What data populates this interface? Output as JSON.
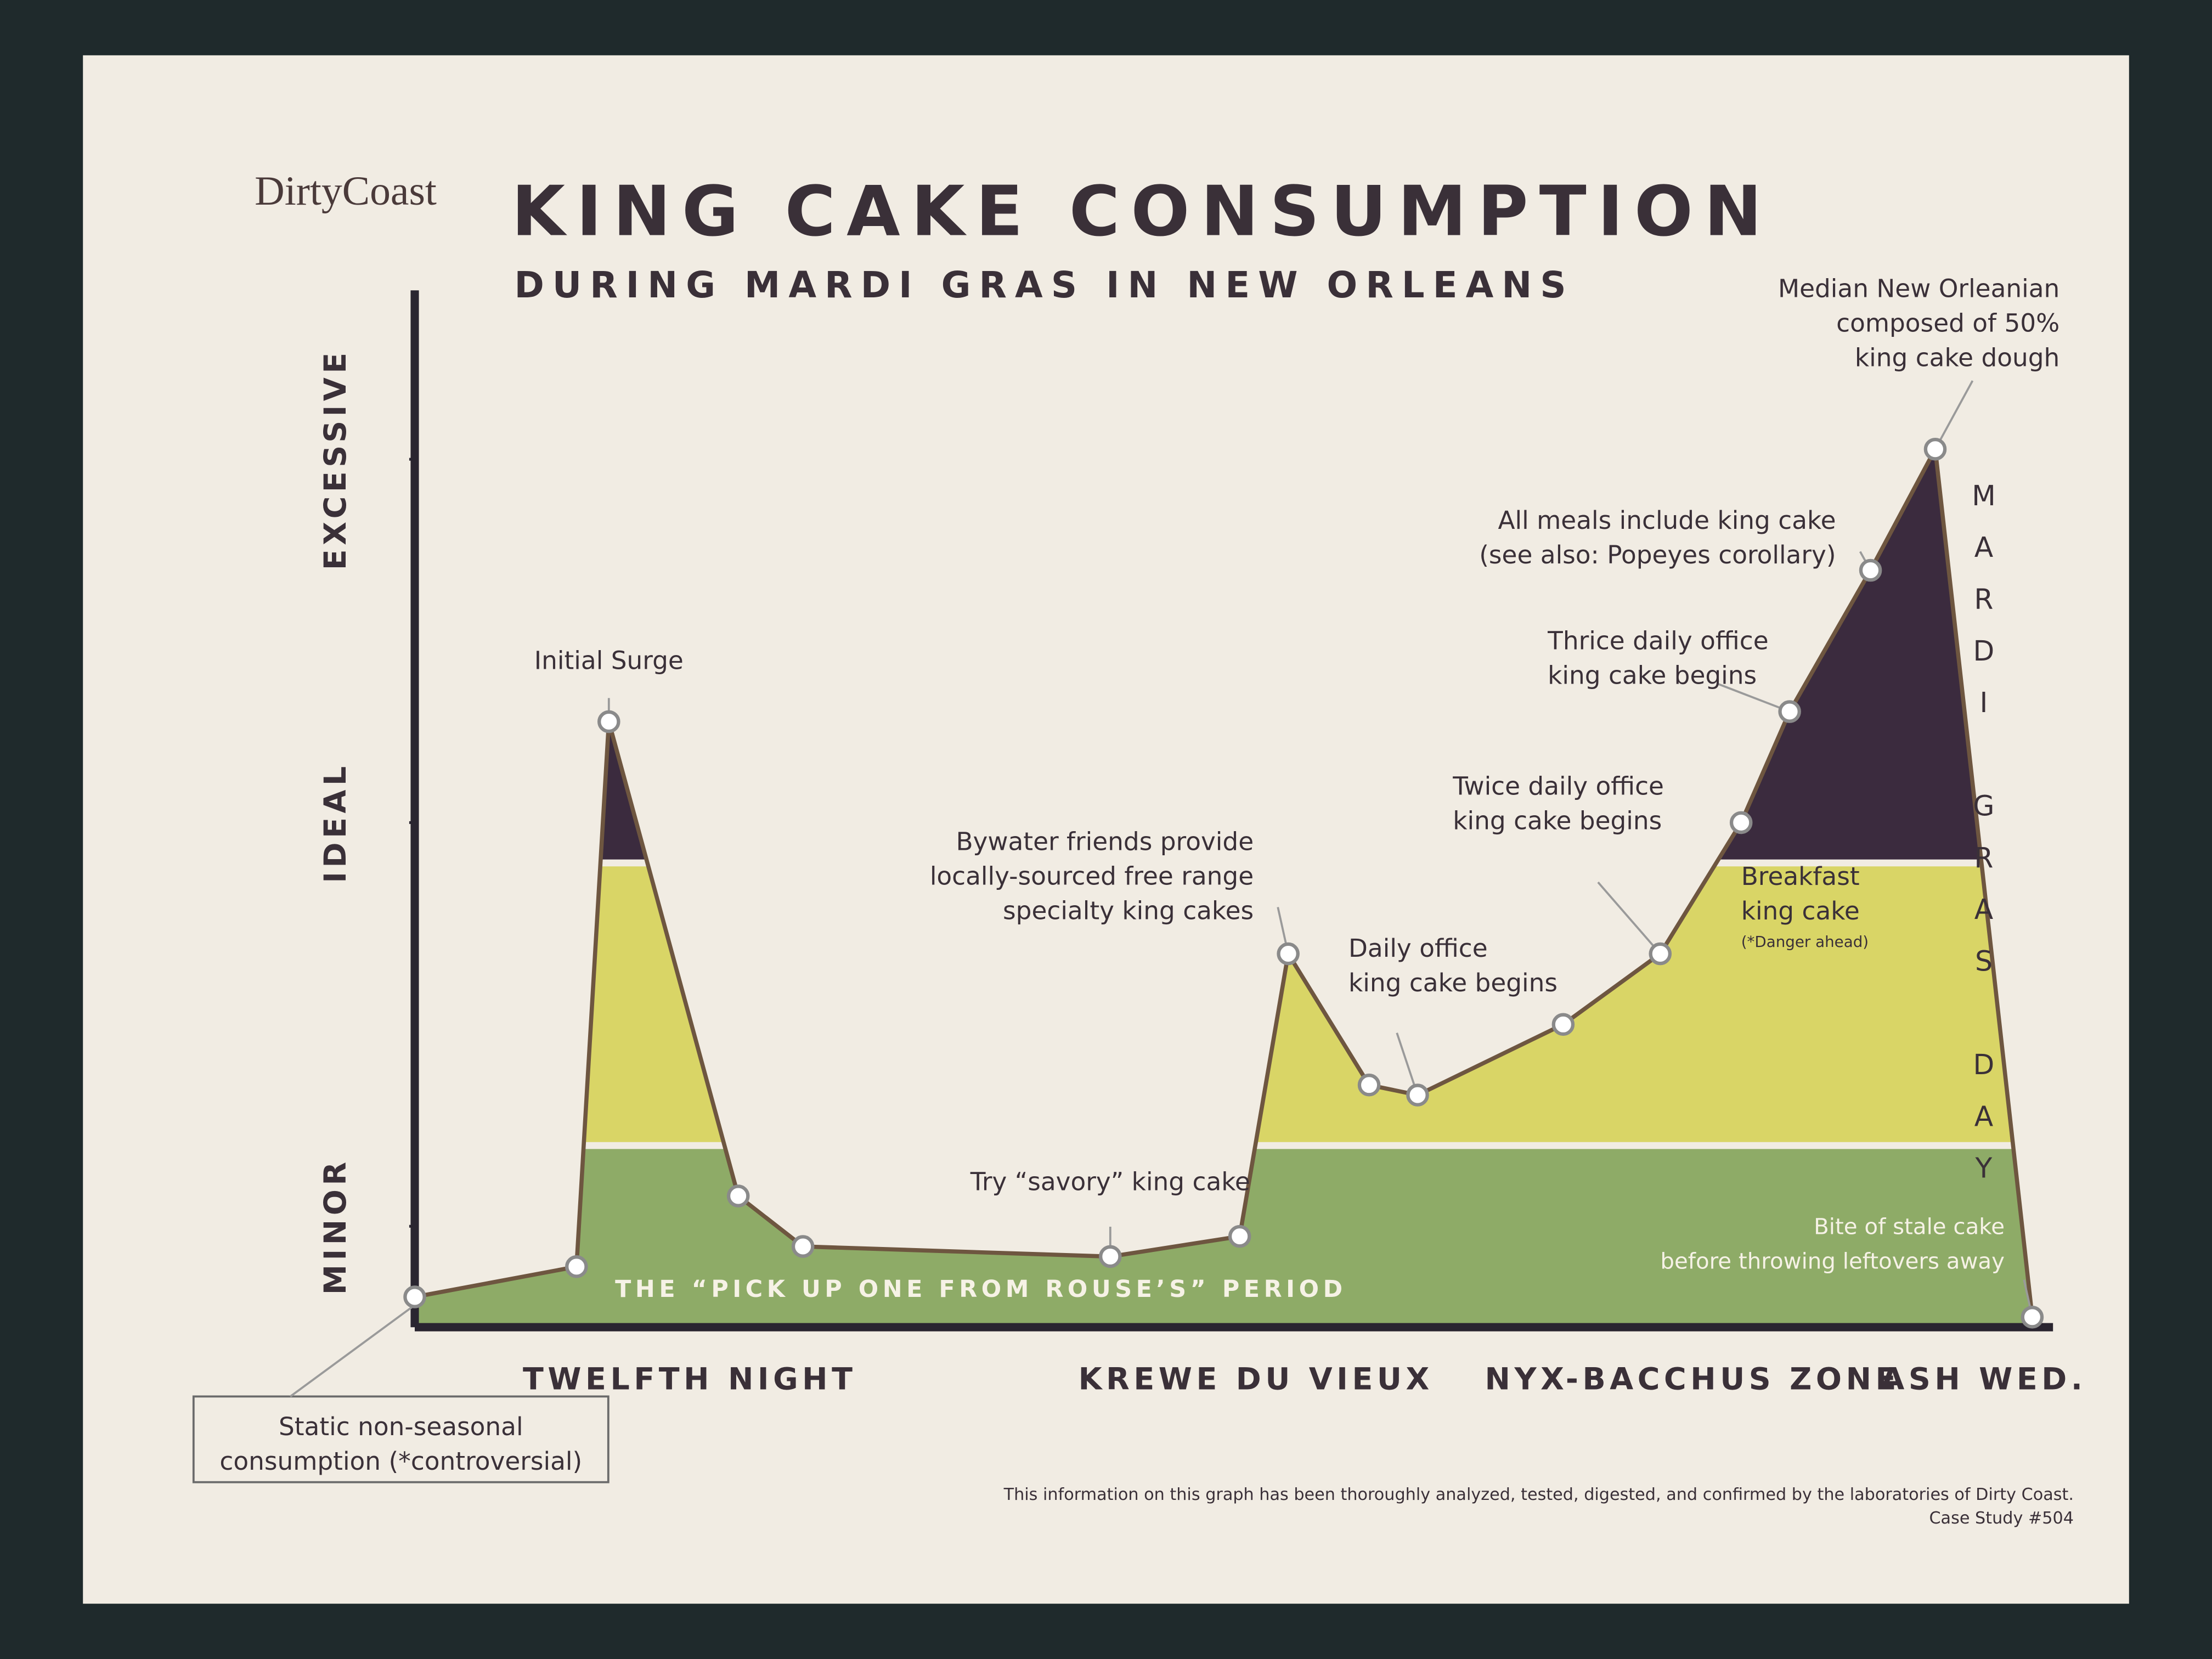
{
  "logo": "DirtyCoast",
  "footnote": "This information on this graph has been thoroughly analyzed, tested, digested, and confirmed by the laboratories of Dirty Coast.",
  "case_study": "Case Study #504",
  "chart_data": {
    "type": "area",
    "title": "KING CAKE CONSUMPTION",
    "subtitle": "DURING MARDI GRAS IN NEW ORLEANS",
    "x": [
      0,
      10,
      12,
      20,
      24,
      43,
      51,
      54,
      59,
      62,
      71,
      77,
      82,
      85,
      90,
      94,
      100
    ],
    "values": [
      3,
      6,
      60,
      13,
      8,
      7,
      9,
      37,
      24,
      23,
      30,
      37,
      50,
      61,
      75,
      87,
      1
    ],
    "point_labels": [
      [
        "Static non-seasonal",
        "consumption (*controversial)"
      ],
      null,
      [
        "Initial Surge"
      ],
      null,
      null,
      [
        "Try “savory” king cake"
      ],
      null,
      [
        "Bywater friends provide",
        "locally-sourced free range",
        "specialty king cakes"
      ],
      null,
      [
        "Daily office",
        "king cake begins"
      ],
      null,
      [
        "Twice daily office",
        "king cake begins"
      ],
      [
        "Breakfast",
        "king cake",
        "(*Danger ahead)"
      ],
      [
        "Thrice daily office",
        "king cake begins"
      ],
      [
        "All meals include king cake",
        "(see also: Popeyes corollary)"
      ],
      [
        "Median New Orleanian",
        "composed of 50%",
        "king cake dough"
      ],
      [
        "Bite of stale cake",
        "before throwing leftovers away"
      ]
    ],
    "line_color": "#6e5640",
    "band_colors": [
      "#8eab67",
      "#d9d566",
      "#3b2b3e"
    ],
    "band_breaks": [
      18,
      46
    ],
    "band_label": "THE “PICK UP ONE FROM ROUSE’S” PERIOD",
    "mardi_gras_label": "MARDI GRAS DAY",
    "xlim": [
      0,
      100
    ],
    "ylim": [
      0,
      100
    ],
    "xticks": [
      {
        "value": 17,
        "label": "TWELFTH NIGHT"
      },
      {
        "value": 52,
        "label": "KREWE DU VIEUX"
      },
      {
        "value": 79,
        "label": "NYX-BACCHUS ZONE"
      },
      {
        "value": 97,
        "label": "ASH WED."
      }
    ],
    "yticks": [
      {
        "value": 10,
        "label": "MINOR"
      },
      {
        "value": 50,
        "label": "IDEAL"
      },
      {
        "value": 86,
        "label": "EXCESSIVE"
      }
    ],
    "grid": false
  }
}
